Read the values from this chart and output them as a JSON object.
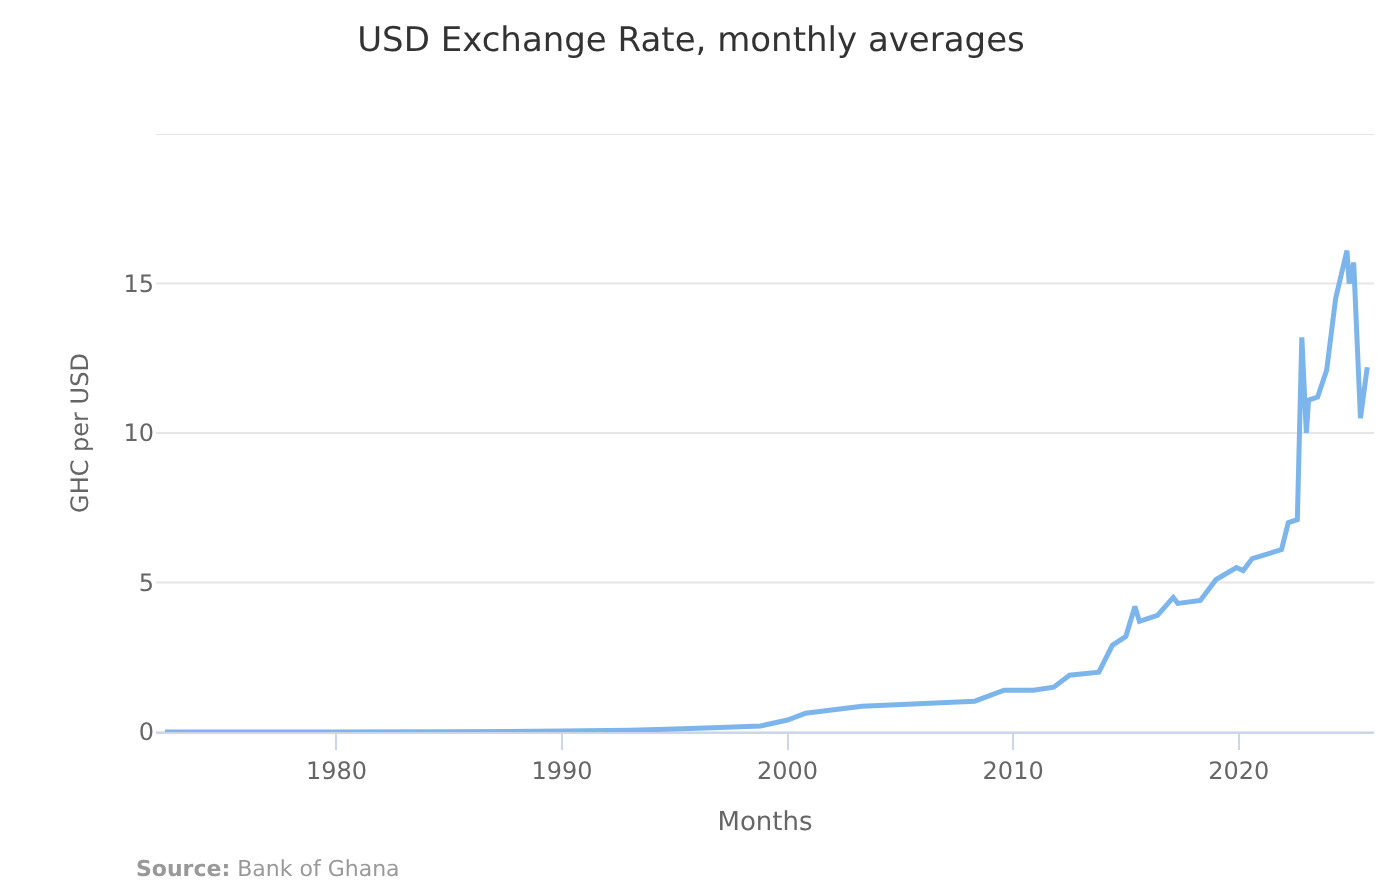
{
  "chart_data": {
    "type": "line",
    "title": "USD Exchange Rate, monthly averages",
    "xlabel": "Months",
    "ylabel": "GHC per USD",
    "annotations": [
      "Source: Bank of Ghana"
    ],
    "x": [
      1972.4,
      1980,
      1985,
      1990,
      1993,
      1995,
      1997,
      1998.8,
      2000,
      2000.8,
      2003.3,
      2008.3,
      2009.6,
      2010.9,
      2011.8,
      2012.5,
      2013.8,
      2014.4,
      2015.0,
      2015.4,
      2015.6,
      2016.4,
      2017.1,
      2017.3,
      2018.3,
      2019.0,
      2019.9,
      2020.2,
      2020.6,
      2021.9,
      2022.2,
      2022.6,
      2022.8,
      2023.0,
      2023.1,
      2023.5,
      2023.9,
      2024.3,
      2024.8,
      2024.9,
      2025.1,
      2025.4,
      2025.7
    ],
    "series": [
      {
        "color": "#7cb5ec",
        "values": [
          0,
          0,
          0.01,
          0.03,
          0.06,
          0.1,
          0.15,
          0.2,
          0.4,
          0.63,
          0.86,
          1.03,
          1.4,
          1.4,
          1.5,
          1.9,
          2.0,
          2.9,
          3.2,
          4.2,
          3.7,
          3.9,
          4.5,
          4.3,
          4.4,
          5.1,
          5.5,
          5.4,
          5.8,
          6.1,
          7.0,
          7.1,
          13.2,
          10.0,
          11.1,
          11.2,
          12.1,
          14.5,
          16.1,
          15.0,
          15.7,
          10.5,
          12.2
        ]
      }
    ],
    "xlim": [
      1972,
      2026
    ],
    "xticks": [
      1980,
      1990,
      2000,
      2010,
      2020
    ],
    "ylim": [
      0,
      20
    ],
    "yticks": [
      0,
      5,
      10,
      15,
      {
        "value": 20,
        "label": null
      }
    ],
    "grid": "y",
    "marker": "none",
    "line_style": "solid"
  }
}
